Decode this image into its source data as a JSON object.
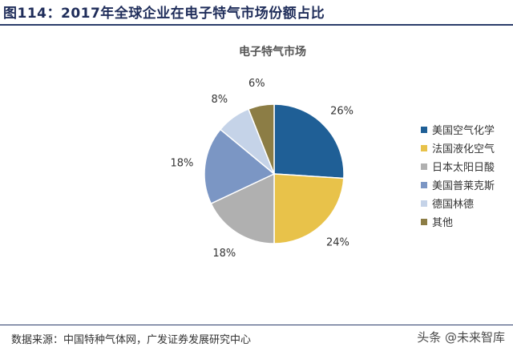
{
  "figure_title": "图114：2017年全球企业在电子特气市场份额占比",
  "source": "数据来源：中国特种气体网，广发证券发展研究中心",
  "watermark": "头条 @未来智库",
  "chart_data": {
    "type": "pie",
    "title": "电子特气市场",
    "categories": [
      "美国空气化学",
      "法国液化空气",
      "日本太阳日酸",
      "美国普莱克斯",
      "德国林德",
      "其他"
    ],
    "values": [
      26,
      24,
      18,
      18,
      8,
      6
    ],
    "labels": [
      "26%",
      "24%",
      "18%",
      "18%",
      "8%",
      "6%"
    ],
    "colors": [
      "#1f5f96",
      "#e8c24a",
      "#b0b0b0",
      "#7b96c4",
      "#c5d3e8",
      "#8c7d45"
    ],
    "legend_position": "right",
    "start": "12 o'clock",
    "direction": "clockwise"
  }
}
